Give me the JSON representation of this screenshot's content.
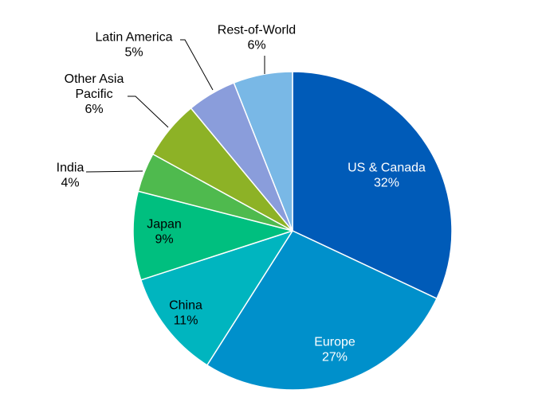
{
  "chart_data": {
    "type": "pie",
    "title": "",
    "slices": [
      {
        "label": "US & Canada",
        "value": 32,
        "display": "32%",
        "color": "#005BB8"
      },
      {
        "label": "Europe",
        "value": 27,
        "display": "27%",
        "color": "#0090CB"
      },
      {
        "label": "China",
        "value": 11,
        "display": "11%",
        "color": "#00B5BF"
      },
      {
        "label": "Japan",
        "value": 9,
        "display": "9%",
        "color": "#00BF7F"
      },
      {
        "label": "India",
        "value": 4,
        "display": "4%",
        "color": "#4FBA4E"
      },
      {
        "label": "Other Asia Pacific",
        "value": 6,
        "display": "6%",
        "color": "#8DB226"
      },
      {
        "label": "Latin America",
        "value": 5,
        "display": "5%",
        "color": "#8A9DDB"
      },
      {
        "label": "Rest-of-World",
        "value": 6,
        "display": "6%",
        "color": "#79B8E6"
      }
    ]
  }
}
